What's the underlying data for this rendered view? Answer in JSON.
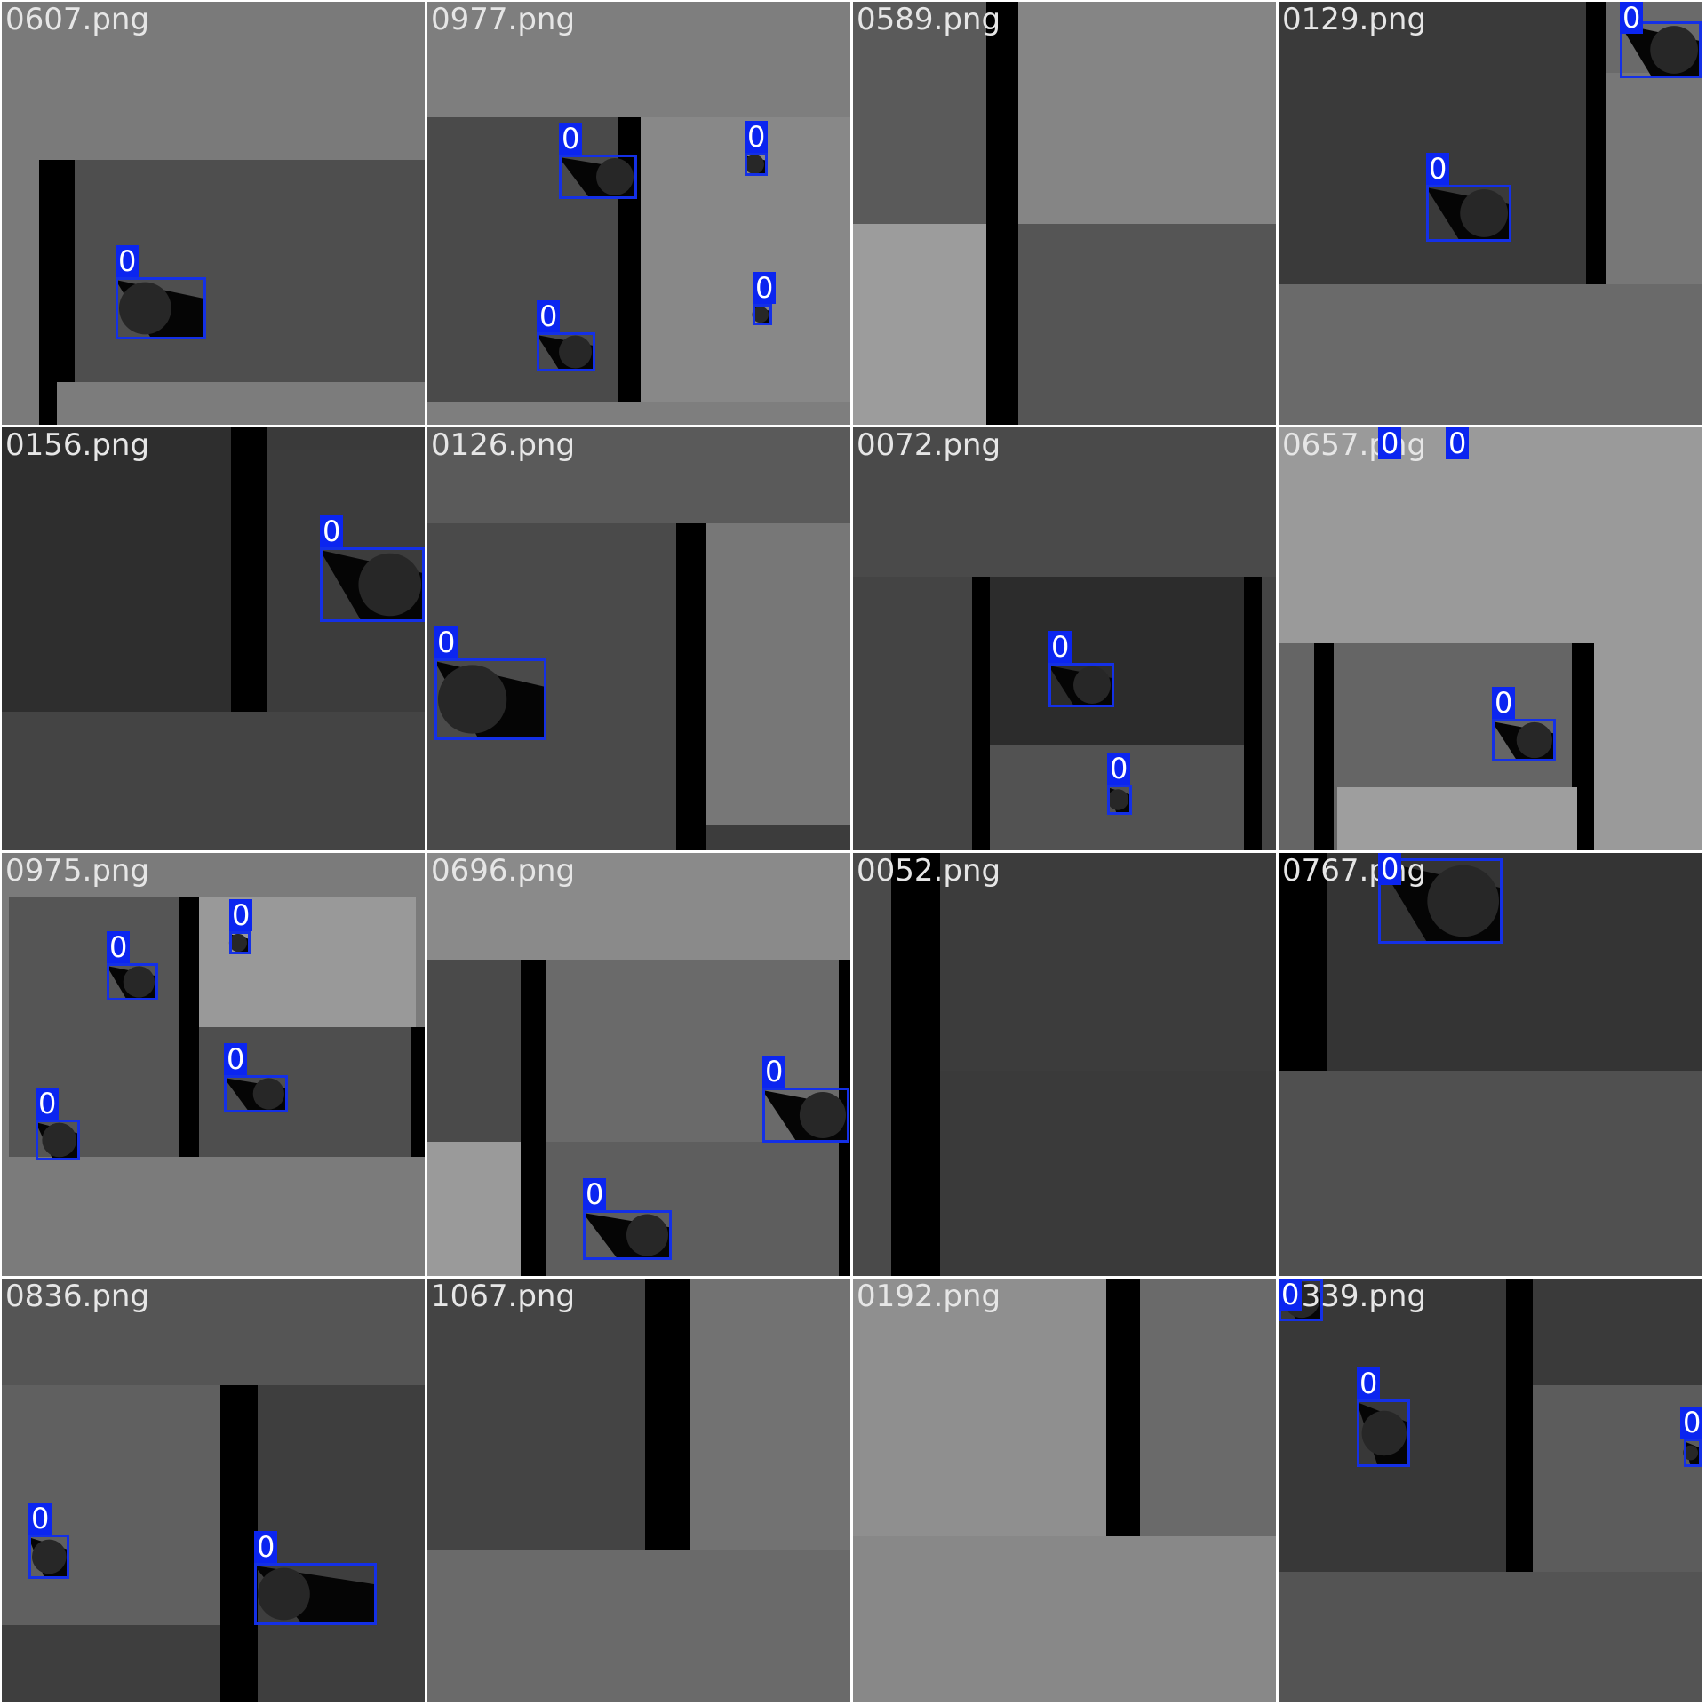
{
  "tiles": [
    {
      "file": "0607.png",
      "labels": [
        "0"
      ]
    },
    {
      "file": "0977.png",
      "labels": [
        "0",
        "0",
        "0",
        "0"
      ]
    },
    {
      "file": "0589.png",
      "labels": []
    },
    {
      "file": "0129.png",
      "labels": [
        "0",
        "0"
      ]
    },
    {
      "file": "0156.png",
      "labels": [
        "0"
      ]
    },
    {
      "file": "0126.png",
      "labels": [
        "0"
      ]
    },
    {
      "file": "0072.png",
      "labels": [
        "0",
        "0"
      ]
    },
    {
      "file": "0657.png",
      "labels": [
        "0",
        "0",
        "0"
      ]
    },
    {
      "file": "0975.png",
      "labels": [
        "0",
        "0",
        "0",
        "0"
      ]
    },
    {
      "file": "0696.png",
      "labels": [
        "0",
        "0"
      ]
    },
    {
      "file": "0052.png",
      "labels": []
    },
    {
      "file": "0767.png",
      "labels": [
        "0"
      ]
    },
    {
      "file": "0836.png",
      "labels": [
        "0",
        "0"
      ]
    },
    {
      "file": "1067.png",
      "labels": []
    },
    {
      "file": "0192.png",
      "labels": []
    },
    {
      "file": "0339.png",
      "labels": [
        "0",
        "0",
        "0"
      ]
    }
  ],
  "colors": {
    "box": "#1430e6",
    "tag_bg": "#0b25f0",
    "filename": "#e6e6e6",
    "separator": "#ffffff"
  },
  "icons": {
    "detection": "bounding-box",
    "object": "dark-circle-with-shadow"
  }
}
